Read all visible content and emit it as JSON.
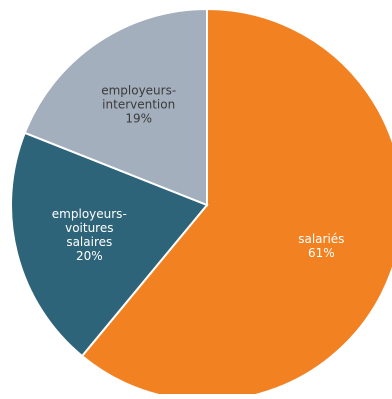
{
  "chart_data": {
    "type": "pie",
    "title": "",
    "start_angle_deg": 0,
    "direction": "clockwise",
    "slices": [
      {
        "label_lines": [
          "salariés"
        ],
        "value": 61,
        "value_label": "61%",
        "color": "#F28122",
        "label_color": "#ffffff"
      },
      {
        "label_lines": [
          "employeurs-",
          "voitures",
          "salaires"
        ],
        "value": 20,
        "value_label": "20%",
        "color": "#2E6479",
        "label_color": "#ffffff"
      },
      {
        "label_lines": [
          "employeurs-",
          "intervention"
        ],
        "value": 19,
        "value_label": "19%",
        "color": "#A4AFBD",
        "label_color": "#3a3a3a"
      }
    ]
  }
}
